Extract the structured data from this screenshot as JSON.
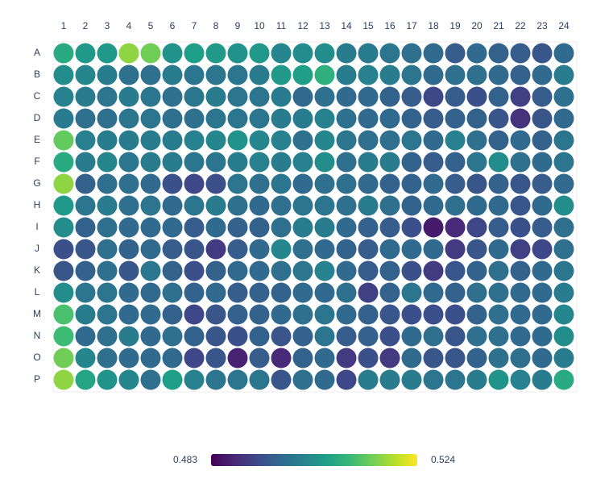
{
  "chart_data": {
    "type": "heatmap",
    "colorscale": "viridis",
    "rows": [
      "A",
      "B",
      "C",
      "D",
      "E",
      "F",
      "G",
      "H",
      "I",
      "J",
      "K",
      "L",
      "M",
      "N",
      "O",
      "P"
    ],
    "columns": [
      1,
      2,
      3,
      4,
      5,
      6,
      7,
      8,
      9,
      10,
      11,
      12,
      13,
      14,
      15,
      16,
      17,
      18,
      19,
      20,
      21,
      22,
      23,
      24
    ],
    "zlim": [
      0.483,
      0.524
    ],
    "values": [
      [
        0.508,
        0.505,
        0.505,
        0.517,
        0.515,
        0.504,
        0.506,
        0.505,
        0.504,
        0.505,
        0.502,
        0.503,
        0.503,
        0.5,
        0.5,
        0.499,
        0.498,
        0.497,
        0.495,
        0.497,
        0.496,
        0.495,
        0.494,
        0.497
      ],
      [
        0.503,
        0.502,
        0.5,
        0.498,
        0.498,
        0.5,
        0.499,
        0.499,
        0.499,
        0.5,
        0.505,
        0.506,
        0.509,
        0.5,
        0.501,
        0.5,
        0.499,
        0.497,
        0.498,
        0.498,
        0.497,
        0.496,
        0.497,
        0.5
      ],
      [
        0.501,
        0.5,
        0.499,
        0.5,
        0.499,
        0.498,
        0.499,
        0.5,
        0.499,
        0.499,
        0.5,
        0.497,
        0.498,
        0.497,
        0.497,
        0.496,
        0.495,
        0.492,
        0.495,
        0.493,
        0.496,
        0.491,
        0.495,
        0.498
      ],
      [
        0.5,
        0.498,
        0.498,
        0.499,
        0.499,
        0.498,
        0.498,
        0.499,
        0.499,
        0.499,
        0.5,
        0.5,
        0.501,
        0.498,
        0.497,
        0.497,
        0.496,
        0.495,
        0.496,
        0.496,
        0.494,
        0.489,
        0.494,
        0.497
      ],
      [
        0.514,
        0.501,
        0.5,
        0.5,
        0.5,
        0.5,
        0.501,
        0.502,
        0.504,
        0.502,
        0.501,
        0.498,
        0.502,
        0.499,
        0.498,
        0.498,
        0.499,
        0.497,
        0.501,
        0.498,
        0.496,
        0.497,
        0.496,
        0.499
      ],
      [
        0.508,
        0.5,
        0.502,
        0.499,
        0.5,
        0.5,
        0.499,
        0.499,
        0.5,
        0.501,
        0.5,
        0.501,
        0.503,
        0.498,
        0.5,
        0.5,
        0.496,
        0.495,
        0.496,
        0.499,
        0.503,
        0.498,
        0.497,
        0.499
      ],
      [
        0.517,
        0.496,
        0.498,
        0.498,
        0.497,
        0.493,
        0.492,
        0.493,
        0.499,
        0.498,
        0.499,
        0.497,
        0.498,
        0.498,
        0.497,
        0.496,
        0.496,
        0.497,
        0.495,
        0.494,
        0.496,
        0.494,
        0.495,
        0.497
      ],
      [
        0.505,
        0.499,
        0.5,
        0.498,
        0.499,
        0.497,
        0.499,
        0.5,
        0.498,
        0.497,
        0.498,
        0.499,
        0.499,
        0.498,
        0.5,
        0.498,
        0.496,
        0.497,
        0.498,
        0.497,
        0.497,
        0.494,
        0.497,
        0.503
      ],
      [
        0.503,
        0.496,
        0.498,
        0.497,
        0.497,
        0.497,
        0.495,
        0.497,
        0.496,
        0.496,
        0.498,
        0.5,
        0.5,
        0.497,
        0.496,
        0.495,
        0.493,
        0.486,
        0.488,
        0.492,
        0.495,
        0.493,
        0.495,
        0.498
      ],
      [
        0.493,
        0.494,
        0.498,
        0.496,
        0.497,
        0.495,
        0.494,
        0.49,
        0.495,
        0.497,
        0.502,
        0.498,
        0.497,
        0.496,
        0.495,
        0.497,
        0.497,
        0.497,
        0.49,
        0.494,
        0.497,
        0.491,
        0.492,
        0.498
      ],
      [
        0.494,
        0.496,
        0.498,
        0.494,
        0.499,
        0.496,
        0.493,
        0.496,
        0.497,
        0.497,
        0.498,
        0.499,
        0.501,
        0.497,
        0.495,
        0.496,
        0.493,
        0.49,
        0.494,
        0.496,
        0.498,
        0.496,
        0.497,
        0.499
      ],
      [
        0.503,
        0.499,
        0.499,
        0.497,
        0.497,
        0.498,
        0.496,
        0.497,
        0.495,
        0.496,
        0.496,
        0.497,
        0.497,
        0.498,
        0.491,
        0.496,
        0.499,
        0.497,
        0.496,
        0.498,
        0.498,
        0.497,
        0.497,
        0.5
      ],
      [
        0.512,
        0.5,
        0.499,
        0.497,
        0.497,
        0.496,
        0.492,
        0.494,
        0.496,
        0.496,
        0.497,
        0.498,
        0.499,
        0.497,
        0.496,
        0.494,
        0.493,
        0.493,
        0.493,
        0.496,
        0.498,
        0.497,
        0.497,
        0.502
      ],
      [
        0.511,
        0.497,
        0.498,
        0.5,
        0.497,
        0.498,
        0.496,
        0.494,
        0.493,
        0.496,
        0.494,
        0.496,
        0.499,
        0.495,
        0.496,
        0.493,
        0.497,
        0.498,
        0.494,
        0.498,
        0.498,
        0.497,
        0.497,
        0.503
      ],
      [
        0.515,
        0.502,
        0.498,
        0.497,
        0.497,
        0.497,
        0.492,
        0.494,
        0.487,
        0.495,
        0.488,
        0.496,
        0.497,
        0.49,
        0.493,
        0.49,
        0.497,
        0.494,
        0.494,
        0.496,
        0.498,
        0.498,
        0.497,
        0.5
      ],
      [
        0.517,
        0.507,
        0.504,
        0.502,
        0.498,
        0.506,
        0.501,
        0.499,
        0.499,
        0.499,
        0.494,
        0.498,
        0.497,
        0.492,
        0.5,
        0.5,
        0.5,
        0.499,
        0.499,
        0.5,
        0.504,
        0.501,
        0.5,
        0.508
      ]
    ]
  }
}
